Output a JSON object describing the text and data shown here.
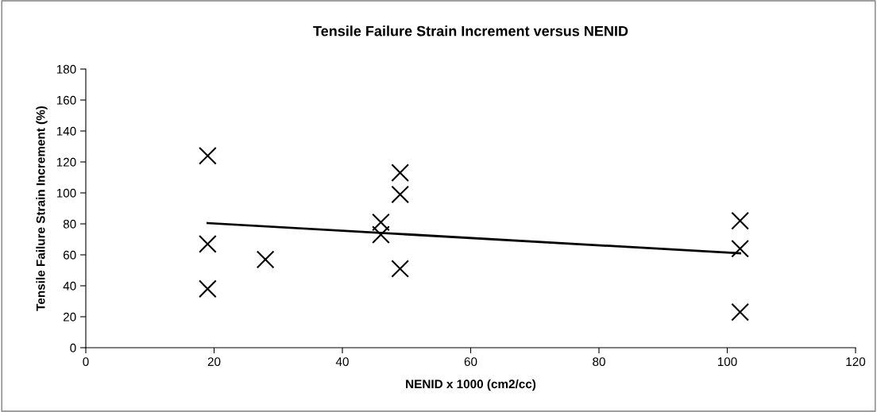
{
  "chart_data": {
    "type": "scatter",
    "title": "Tensile Failure Strain Increment versus NENID",
    "xlabel": "NENID x 1000 (cm2/cc)",
    "ylabel": "Tensile Failure Strain Increment (%)",
    "series": [
      {
        "color": "#000000",
        "marker": "cross",
        "x": [
          19,
          19,
          19,
          28,
          46,
          46,
          49,
          49,
          49,
          102,
          102,
          102
        ],
        "values": [
          124,
          67,
          38,
          57,
          81,
          73,
          113,
          99,
          51,
          82,
          64,
          23
        ]
      },
      {
        "type": "line",
        "color": "#000000",
        "marker": "none",
        "line_style": "solid",
        "x": [
          19,
          102
        ],
        "values": [
          80.5,
          61
        ]
      }
    ],
    "xlim": [
      0,
      120
    ],
    "xticks": [
      0,
      20,
      40,
      60,
      80,
      100,
      120
    ],
    "ylim": [
      0,
      180
    ],
    "yticks": [
      0,
      20,
      40,
      60,
      80,
      100,
      120,
      140,
      160,
      180
    ],
    "grid": false,
    "legend": false
  }
}
